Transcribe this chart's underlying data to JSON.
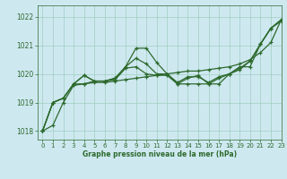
{
  "title": "Graphe pression niveau de la mer (hPa)",
  "bg_color": "#cee8f0",
  "grid_color": "#9ecfbf",
  "line_color": "#2d6a2d",
  "xlim": [
    -0.5,
    23
  ],
  "ylim": [
    1017.7,
    1022.4
  ],
  "yticks": [
    1018,
    1019,
    1020,
    1021,
    1022
  ],
  "xticks": [
    0,
    1,
    2,
    3,
    4,
    5,
    6,
    7,
    8,
    9,
    10,
    11,
    12,
    13,
    14,
    15,
    16,
    17,
    18,
    19,
    20,
    21,
    22,
    23
  ],
  "lines": [
    [
      1018.0,
      1018.2,
      1019.0,
      1019.6,
      1019.65,
      1019.7,
      1019.7,
      1019.75,
      1019.8,
      1019.85,
      1019.9,
      1019.95,
      1020.0,
      1020.05,
      1020.1,
      1020.1,
      1020.15,
      1020.2,
      1020.25,
      1020.35,
      1020.5,
      1020.75,
      1021.1,
      1021.9
    ],
    [
      1018.0,
      1019.0,
      1019.15,
      1019.65,
      1019.95,
      1019.75,
      1019.75,
      1019.8,
      1020.2,
      1020.25,
      1020.0,
      1019.95,
      1019.95,
      1019.65,
      1019.85,
      1019.95,
      1019.65,
      1019.85,
      1020.0,
      1020.2,
      1020.45,
      1021.05,
      1021.6,
      1021.9
    ],
    [
      1018.0,
      1019.0,
      1019.15,
      1019.65,
      1019.95,
      1019.75,
      1019.75,
      1019.85,
      1020.25,
      1020.55,
      1020.35,
      1020.0,
      1020.0,
      1019.7,
      1019.9,
      1019.9,
      1019.7,
      1019.9,
      1020.0,
      1020.15,
      1020.45,
      1021.05,
      1021.6,
      1021.9
    ],
    [
      1018.0,
      1019.0,
      1019.15,
      1019.65,
      1019.65,
      1019.75,
      1019.75,
      1019.85,
      1020.25,
      1020.9,
      1020.9,
      1020.4,
      1020.0,
      1019.65,
      1019.65,
      1019.65,
      1019.65,
      1019.65,
      1020.0,
      1020.25,
      1020.25,
      1021.05,
      1021.6,
      1021.85
    ]
  ]
}
